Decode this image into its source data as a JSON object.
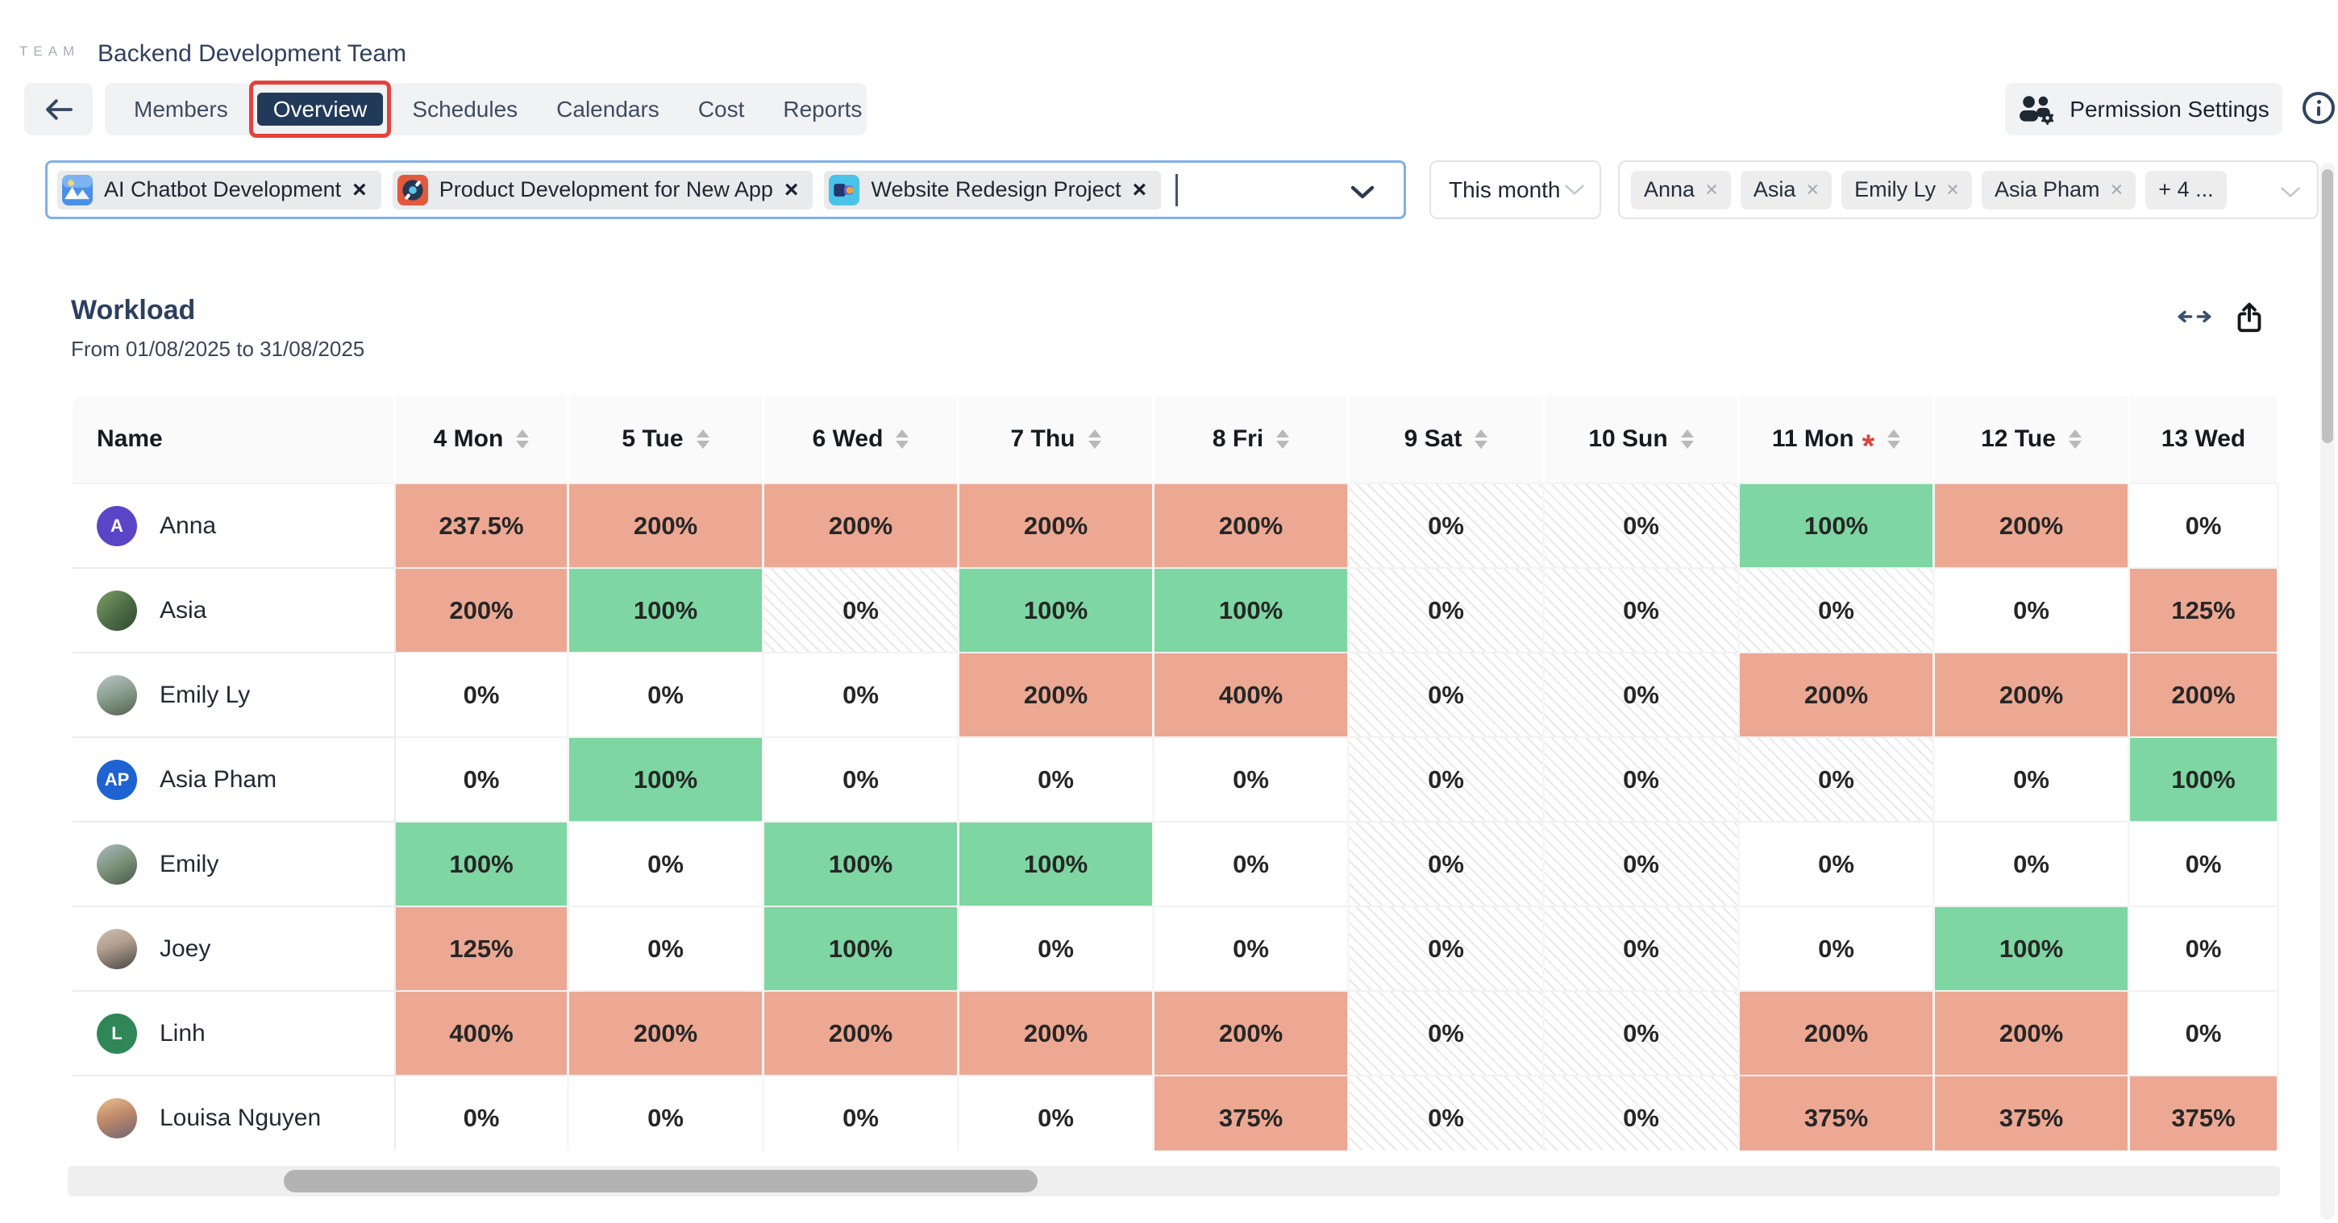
{
  "header": {
    "logo": "TEAM",
    "team_name": "Backend Development Team",
    "tabs": [
      {
        "label": "Members",
        "active": false
      },
      {
        "label": "Overview",
        "active": true
      },
      {
        "label": "Schedules",
        "active": false
      },
      {
        "label": "Calendars",
        "active": false
      },
      {
        "label": "Cost",
        "active": false
      },
      {
        "label": "Reports",
        "active": false
      }
    ],
    "permission_settings_label": "Permission Settings"
  },
  "filters": {
    "projects": [
      {
        "name": "AI Chatbot Development",
        "icon": "mountain-sun-icon",
        "icon_bg": "#4a90e8"
      },
      {
        "name": "Product Development for New App",
        "icon": "record-icon",
        "icon_bg": "#e2593d"
      },
      {
        "name": "Website Redesign Project",
        "icon": "blocks-icon",
        "icon_bg": "#49c3e8"
      }
    ],
    "period": "This month",
    "people": [
      "Anna",
      "Asia",
      "Emily Ly",
      "Asia Pham"
    ],
    "people_more": "+ 4 ..."
  },
  "workload": {
    "title": "Workload",
    "date_range": "From 01/08/2025 to 31/08/2025",
    "name_header": "Name",
    "columns": [
      {
        "label": "4 Mon",
        "sortable": true,
        "marked": false
      },
      {
        "label": "5 Tue",
        "sortable": true,
        "marked": false
      },
      {
        "label": "6 Wed",
        "sortable": true,
        "marked": false
      },
      {
        "label": "7 Thu",
        "sortable": true,
        "marked": false
      },
      {
        "label": "8 Fri",
        "sortable": true,
        "marked": false
      },
      {
        "label": "9 Sat",
        "sortable": true,
        "marked": false
      },
      {
        "label": "10 Sun",
        "sortable": true,
        "marked": false
      },
      {
        "label": "11 Mon",
        "sortable": true,
        "marked": true
      },
      {
        "label": "12 Tue",
        "sortable": true,
        "marked": false
      },
      {
        "label": "13 Wed",
        "sortable": false,
        "marked": false
      }
    ],
    "rows": [
      {
        "name": "Anna",
        "avatar": {
          "type": "initials",
          "text": "A",
          "bg": "#5b45c7"
        },
        "cells": [
          {
            "v": "237.5%",
            "s": "over"
          },
          {
            "v": "200%",
            "s": "over"
          },
          {
            "v": "200%",
            "s": "over"
          },
          {
            "v": "200%",
            "s": "over"
          },
          {
            "v": "200%",
            "s": "over"
          },
          {
            "v": "0%",
            "s": "off"
          },
          {
            "v": "0%",
            "s": "off"
          },
          {
            "v": "100%",
            "s": "full"
          },
          {
            "v": "200%",
            "s": "over"
          },
          {
            "v": "0%",
            "s": "zero"
          }
        ]
      },
      {
        "name": "Asia",
        "avatar": {
          "type": "photo",
          "text": "",
          "bg": "linear-gradient(135deg,#7da06a 0%,#4c6b44 55%,#2f4a31 100%)"
        },
        "cells": [
          {
            "v": "200%",
            "s": "over"
          },
          {
            "v": "100%",
            "s": "full"
          },
          {
            "v": "0%",
            "s": "off"
          },
          {
            "v": "100%",
            "s": "full"
          },
          {
            "v": "100%",
            "s": "full"
          },
          {
            "v": "0%",
            "s": "off"
          },
          {
            "v": "0%",
            "s": "off"
          },
          {
            "v": "0%",
            "s": "off"
          },
          {
            "v": "0%",
            "s": "zero"
          },
          {
            "v": "125%",
            "s": "over"
          }
        ]
      },
      {
        "name": "Emily Ly",
        "avatar": {
          "type": "photo",
          "text": "",
          "bg": "linear-gradient(160deg,#b8c4cc 0%,#8da08f 45%,#52624f 100%)"
        },
        "cells": [
          {
            "v": "0%",
            "s": "zero"
          },
          {
            "v": "0%",
            "s": "zero"
          },
          {
            "v": "0%",
            "s": "zero"
          },
          {
            "v": "200%",
            "s": "over"
          },
          {
            "v": "400%",
            "s": "over"
          },
          {
            "v": "0%",
            "s": "off"
          },
          {
            "v": "0%",
            "s": "off"
          },
          {
            "v": "200%",
            "s": "over"
          },
          {
            "v": "200%",
            "s": "over"
          },
          {
            "v": "200%",
            "s": "over"
          }
        ]
      },
      {
        "name": "Asia Pham",
        "avatar": {
          "type": "initials",
          "text": "AP",
          "bg": "#1f63d2"
        },
        "cells": [
          {
            "v": "0%",
            "s": "zero"
          },
          {
            "v": "100%",
            "s": "full"
          },
          {
            "v": "0%",
            "s": "zero"
          },
          {
            "v": "0%",
            "s": "zero"
          },
          {
            "v": "0%",
            "s": "zero"
          },
          {
            "v": "0%",
            "s": "off"
          },
          {
            "v": "0%",
            "s": "off"
          },
          {
            "v": "0%",
            "s": "off"
          },
          {
            "v": "0%",
            "s": "zero"
          },
          {
            "v": "100%",
            "s": "full"
          }
        ]
      },
      {
        "name": "Emily",
        "avatar": {
          "type": "photo",
          "text": "",
          "bg": "linear-gradient(150deg,#a9bac6 0%,#7c9277 50%,#46584a 100%)"
        },
        "cells": [
          {
            "v": "100%",
            "s": "full"
          },
          {
            "v": "0%",
            "s": "zero"
          },
          {
            "v": "100%",
            "s": "full"
          },
          {
            "v": "100%",
            "s": "full"
          },
          {
            "v": "0%",
            "s": "zero"
          },
          {
            "v": "0%",
            "s": "off"
          },
          {
            "v": "0%",
            "s": "off"
          },
          {
            "v": "0%",
            "s": "zero"
          },
          {
            "v": "0%",
            "s": "zero"
          },
          {
            "v": "0%",
            "s": "zero"
          }
        ]
      },
      {
        "name": "Joey",
        "avatar": {
          "type": "photo",
          "text": "",
          "bg": "linear-gradient(160deg,#cdbfae 0%,#b3a090 40%,#4a4643 100%)"
        },
        "cells": [
          {
            "v": "125%",
            "s": "over"
          },
          {
            "v": "0%",
            "s": "zero"
          },
          {
            "v": "100%",
            "s": "full"
          },
          {
            "v": "0%",
            "s": "zero"
          },
          {
            "v": "0%",
            "s": "zero"
          },
          {
            "v": "0%",
            "s": "off"
          },
          {
            "v": "0%",
            "s": "off"
          },
          {
            "v": "0%",
            "s": "zero"
          },
          {
            "v": "100%",
            "s": "full"
          },
          {
            "v": "0%",
            "s": "zero"
          }
        ]
      },
      {
        "name": "Linh",
        "avatar": {
          "type": "initials",
          "text": "L",
          "bg": "#2f8757"
        },
        "cells": [
          {
            "v": "400%",
            "s": "over"
          },
          {
            "v": "200%",
            "s": "over"
          },
          {
            "v": "200%",
            "s": "over"
          },
          {
            "v": "200%",
            "s": "over"
          },
          {
            "v": "200%",
            "s": "over"
          },
          {
            "v": "0%",
            "s": "off"
          },
          {
            "v": "0%",
            "s": "off"
          },
          {
            "v": "200%",
            "s": "over"
          },
          {
            "v": "200%",
            "s": "over"
          },
          {
            "v": "0%",
            "s": "zero"
          }
        ]
      },
      {
        "name": "Louisa Nguyen",
        "avatar": {
          "type": "photo",
          "text": "",
          "bg": "linear-gradient(160deg,#e8c18d 0%,#c08a6b 45%,#6e6470 100%)"
        },
        "cells": [
          {
            "v": "0%",
            "s": "zero"
          },
          {
            "v": "0%",
            "s": "zero"
          },
          {
            "v": "0%",
            "s": "zero"
          },
          {
            "v": "0%",
            "s": "zero"
          },
          {
            "v": "375%",
            "s": "over"
          },
          {
            "v": "0%",
            "s": "off"
          },
          {
            "v": "0%",
            "s": "off"
          },
          {
            "v": "375%",
            "s": "over"
          },
          {
            "v": "375%",
            "s": "over"
          },
          {
            "v": "375%",
            "s": "over"
          }
        ]
      }
    ]
  },
  "icons": {
    "back": "arrow-left-icon",
    "permission": "users-gear-icon",
    "info": "info-circle-icon",
    "projects_dropdown": "chevron-down-icon",
    "period_dropdown": "chevron-down-icon",
    "people_dropdown": "chevron-down-icon",
    "remove_tag": "close-x-icon",
    "sort": "sort-arrows-icon",
    "expand": "arrows-left-right-icon",
    "share": "export-box-icon"
  },
  "colors": {
    "overload_cell": "#ECA893",
    "full_cell": "#7ED6A2",
    "highlight_red": "#E2433C",
    "active_tab_bg": "#223A59",
    "focus_border": "#7FB1EA",
    "navy_text": "#2D3F60"
  }
}
